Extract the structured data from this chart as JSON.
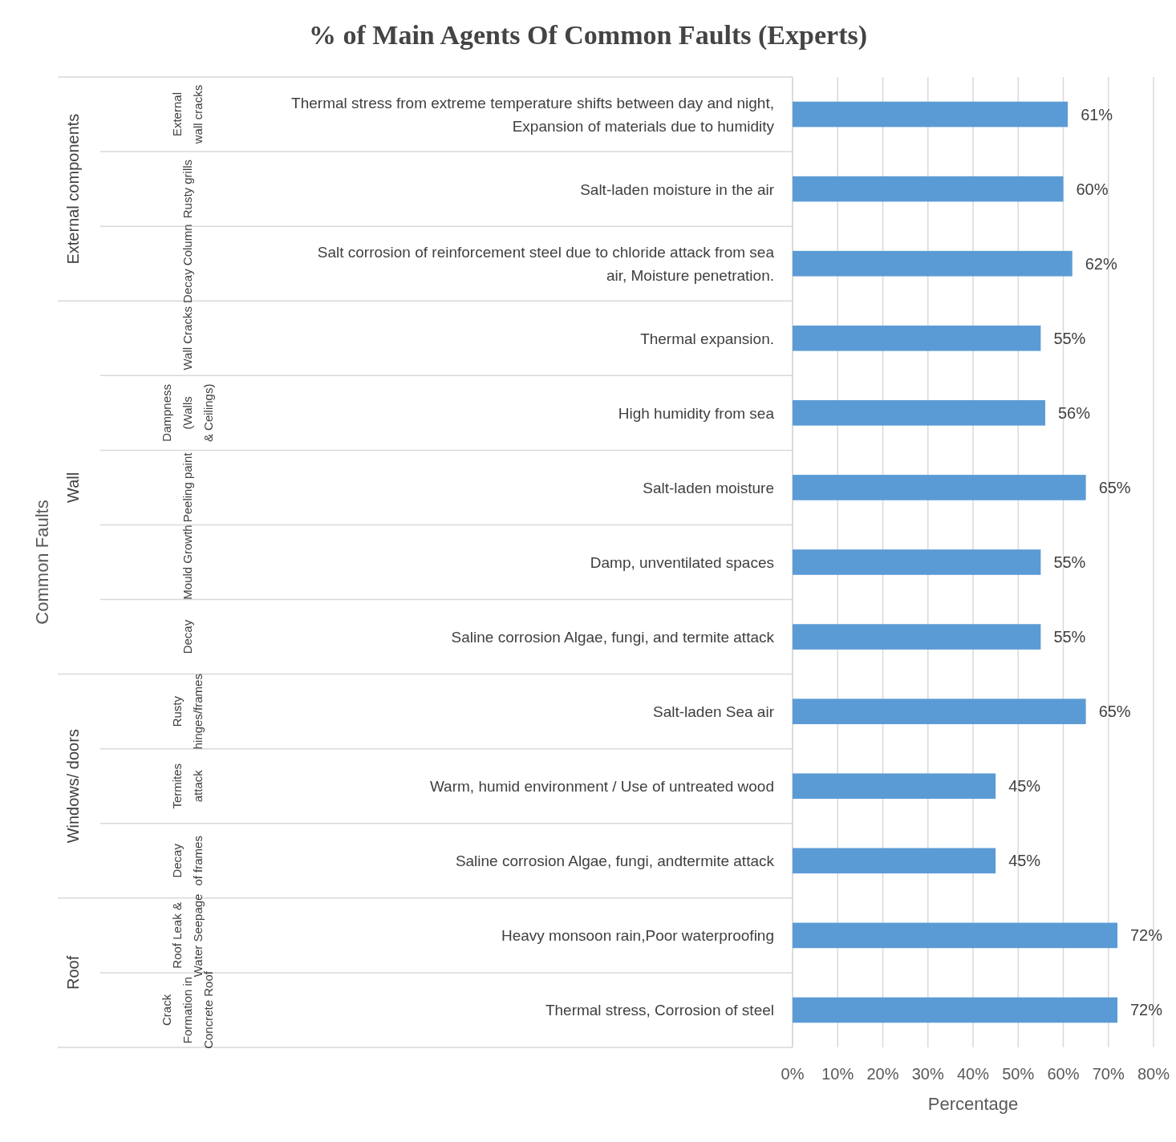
{
  "chart_data": {
    "type": "bar",
    "orientation": "horizontal",
    "title": "% of Main Agents Of Common Faults (Experts)",
    "xlabel": "Percentage",
    "categories": [
      "Thermal stress from extreme temperature shifts between day and night, Expansion of materials due to humidity",
      "Salt-laden moisture in the air",
      "Salt corrosion of reinforcement steel due to chloride attack from sea air, Moisture penetration.",
      "Thermal expansion.",
      "High humidity from sea",
      "Salt-laden moisture",
      "Damp, unventilated spaces",
      "Saline corrosion Algae, fungi, and termite attack",
      "Salt-laden Sea air",
      "Warm, humid environment / Use of untreated wood",
      "Saline corrosion Algae, fungi, andtermite attack",
      "Heavy monsoon rain,Poor waterproofing",
      "Thermal stress, Corrosion of steel"
    ],
    "values": [
      61,
      60,
      62,
      55,
      56,
      65,
      55,
      55,
      65,
      45,
      45,
      72,
      72
    ],
    "value_labels": [
      "61%",
      "60%",
      "62%",
      "55%",
      "56%",
      "65%",
      "55%",
      "55%",
      "65%",
      "45%",
      "45%",
      "72%",
      "72%"
    ],
    "color": "#5b9bd5",
    "xlim": [
      0,
      80
    ],
    "xticks": [
      {
        "value": 0,
        "label": "0%"
      },
      {
        "value": 10,
        "label": "10%"
      },
      {
        "value": 20,
        "label": "20%"
      },
      {
        "value": 30,
        "label": "30%"
      },
      {
        "value": 40,
        "label": "40%"
      },
      {
        "value": 50,
        "label": "50%"
      },
      {
        "value": 60,
        "label": "60%"
      },
      {
        "value": 70,
        "label": "70%"
      },
      {
        "value": 80,
        "label": "80%"
      }
    ],
    "grid": "x",
    "annotations": [
      "External wall cracks",
      "Rusty grills",
      "Decay Column",
      "Wall Cracks",
      "Dampness (Walls & Ceilings)",
      "Peeling paint",
      "Mould Growth",
      "Decay",
      "Rusty hinges/frames",
      "Termites attack",
      "Decay of frames",
      "Roof Leak & Water Seepage",
      "Crack Formation in Concrete Roof",
      "External components",
      "Wall",
      "Windows/ doors",
      "Roof",
      "Common Faults"
    ]
  }
}
